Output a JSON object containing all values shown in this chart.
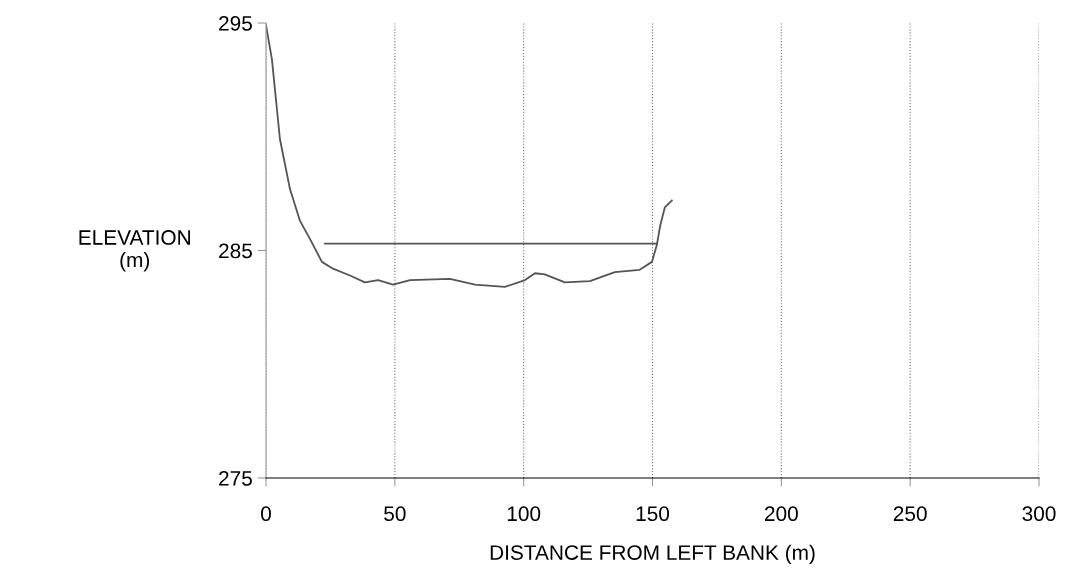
{
  "chart_data": {
    "type": "line",
    "xlabel": "DISTANCE FROM LEFT BANK (m)",
    "ylabel": "ELEVATION\n(m)",
    "xlim": [
      0,
      300
    ],
    "xticks": [
      0,
      50,
      100,
      150,
      200,
      250,
      300
    ],
    "ylim": [
      275,
      295
    ],
    "yticks": [
      275,
      285,
      295
    ],
    "grid": "x",
    "line_style": "solid",
    "series": [
      {
        "color": "#555555",
        "x": [
          0,
          2.3,
          5.4,
          9.3,
          13.2,
          17.1,
          21.7,
          26,
          32.6,
          38.4,
          43.5,
          49.3,
          55.9,
          71.4,
          81.1,
          92.7,
          100.5,
          104.4,
          108.2,
          116,
          125.7,
          135.4,
          145,
          149.8,
          151.7,
          153,
          154.8,
          157.5
        ],
        "values": [
          294.9,
          293.4,
          289.9,
          287.7,
          286.3,
          285.5,
          284.5,
          284.2,
          283.9,
          283.6,
          283.7,
          283.5,
          283.7,
          283.75,
          283.5,
          283.4,
          283.7,
          284.0,
          283.95,
          283.6,
          283.65,
          284.05,
          284.15,
          284.5,
          285.25,
          286.1,
          286.9,
          287.2
        ]
      },
      {
        "color": "#555555",
        "x": [
          22.9,
          151.7
        ],
        "values": [
          285.3,
          285.3
        ]
      }
    ]
  }
}
